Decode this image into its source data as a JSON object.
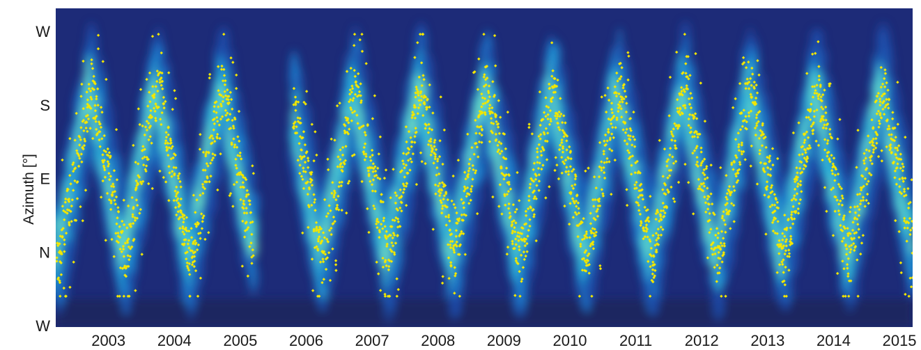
{
  "chart_data": {
    "type": "heatmap",
    "title": "",
    "xlabel": "",
    "ylabel": "Azimuth [°]",
    "x_ticks": [
      "2003",
      "2004",
      "2005",
      "2006",
      "2007",
      "2008",
      "2009",
      "2010",
      "2011",
      "2012",
      "2013",
      "2014",
      "2015"
    ],
    "y_ticks": [
      "W",
      "N",
      "E",
      "S",
      "W"
    ],
    "xlim": [
      2002.2,
      2015.2
    ],
    "y_order_bottom_to_top": [
      "W",
      "N",
      "E",
      "S",
      "W"
    ],
    "data_gap": [
      2005.2,
      2005.8
    ],
    "overlay_series": {
      "type": "scatter",
      "description_color": "#f2e600",
      "marker": "diamond"
    },
    "colormap": [
      "#1a2a78",
      "#1f4aa8",
      "#1e7fd0",
      "#2fb8d8",
      "#6fdcc0",
      "#e8f05a",
      "#f6e214"
    ],
    "grid": false
  },
  "colors": {
    "background": "#1d2b78",
    "scatter": "#f2e600"
  }
}
